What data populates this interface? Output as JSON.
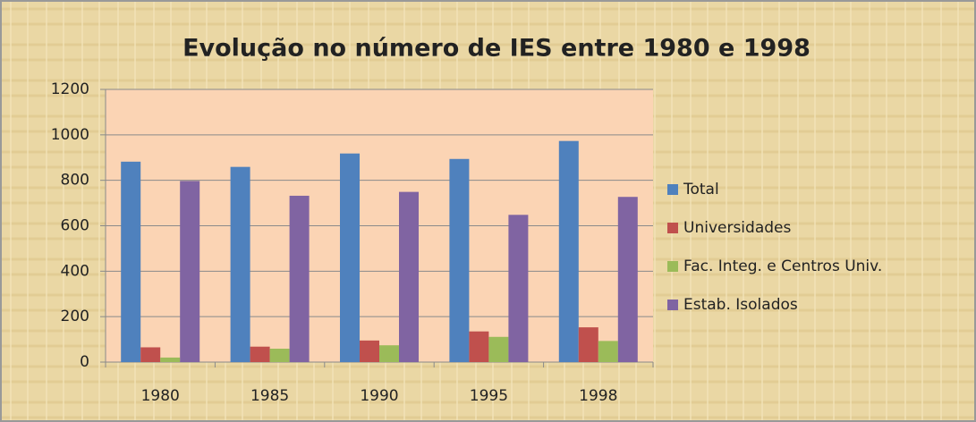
{
  "chart_data": {
    "type": "bar",
    "title": "Evolução no número de IES entre 1980 e 1998",
    "categories": [
      "1980",
      "1985",
      "1990",
      "1995",
      "1998"
    ],
    "series": [
      {
        "name": "Total",
        "color": "#4f81bd",
        "values": [
          882,
          859,
          918,
          894,
          973
        ]
      },
      {
        "name": "Universidades",
        "color": "#c0504d",
        "values": [
          65,
          68,
          95,
          135,
          153
        ]
      },
      {
        "name": "Fac. Integ. e Centros Univ.",
        "color": "#9bbb59",
        "values": [
          20,
          59,
          74,
          111,
          93
        ]
      },
      {
        "name": "Estab. Isolados",
        "color": "#8064a2",
        "values": [
          797,
          732,
          749,
          648,
          727
        ]
      }
    ],
    "ylim": [
      0,
      1200
    ],
    "yticks": [
      0,
      200,
      400,
      600,
      800,
      1000,
      1200
    ],
    "grid": true,
    "legend": "right"
  }
}
